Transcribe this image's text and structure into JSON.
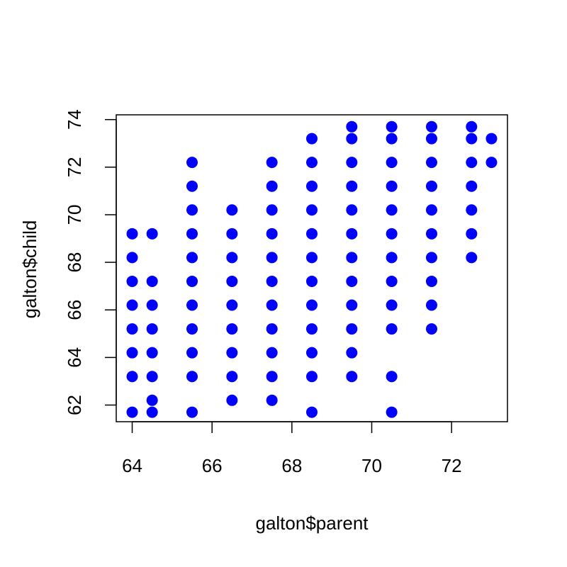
{
  "chart_data": {
    "type": "scatter",
    "xlabel": "galton$parent",
    "ylabel": "galton$child",
    "xlim": [
      63.6,
      73.4
    ],
    "ylim": [
      61.3,
      74.2
    ],
    "x_ticks": [
      64,
      66,
      68,
      70,
      72
    ],
    "y_ticks": [
      62,
      64,
      66,
      68,
      70,
      72,
      74
    ],
    "grid": false,
    "legend": "none",
    "point_color": "#0000ff",
    "points": [
      {
        "x": 64,
        "y": 61.7
      },
      {
        "x": 64,
        "y": 63.2
      },
      {
        "x": 64,
        "y": 64.2
      },
      {
        "x": 64,
        "y": 65.2
      },
      {
        "x": 64,
        "y": 66.2
      },
      {
        "x": 64,
        "y": 67.2
      },
      {
        "x": 64,
        "y": 68.2
      },
      {
        "x": 64,
        "y": 69.2
      },
      {
        "x": 64.5,
        "y": 61.7
      },
      {
        "x": 64.5,
        "y": 62.2
      },
      {
        "x": 64.5,
        "y": 63.2
      },
      {
        "x": 64.5,
        "y": 64.2
      },
      {
        "x": 64.5,
        "y": 65.2
      },
      {
        "x": 64.5,
        "y": 66.2
      },
      {
        "x": 64.5,
        "y": 67.2
      },
      {
        "x": 64.5,
        "y": 69.2
      },
      {
        "x": 65.5,
        "y": 61.7
      },
      {
        "x": 65.5,
        "y": 63.2
      },
      {
        "x": 65.5,
        "y": 64.2
      },
      {
        "x": 65.5,
        "y": 65.2
      },
      {
        "x": 65.5,
        "y": 66.2
      },
      {
        "x": 65.5,
        "y": 67.2
      },
      {
        "x": 65.5,
        "y": 68.2
      },
      {
        "x": 65.5,
        "y": 69.2
      },
      {
        "x": 65.5,
        "y": 70.2
      },
      {
        "x": 65.5,
        "y": 71.2
      },
      {
        "x": 65.5,
        "y": 72.2
      },
      {
        "x": 66.5,
        "y": 62.2
      },
      {
        "x": 66.5,
        "y": 63.2
      },
      {
        "x": 66.5,
        "y": 64.2
      },
      {
        "x": 66.5,
        "y": 65.2
      },
      {
        "x": 66.5,
        "y": 66.2
      },
      {
        "x": 66.5,
        "y": 67.2
      },
      {
        "x": 66.5,
        "y": 68.2
      },
      {
        "x": 66.5,
        "y": 69.2
      },
      {
        "x": 66.5,
        "y": 70.2
      },
      {
        "x": 67.5,
        "y": 62.2
      },
      {
        "x": 67.5,
        "y": 63.2
      },
      {
        "x": 67.5,
        "y": 64.2
      },
      {
        "x": 67.5,
        "y": 65.2
      },
      {
        "x": 67.5,
        "y": 66.2
      },
      {
        "x": 67.5,
        "y": 67.2
      },
      {
        "x": 67.5,
        "y": 68.2
      },
      {
        "x": 67.5,
        "y": 69.2
      },
      {
        "x": 67.5,
        "y": 70.2
      },
      {
        "x": 67.5,
        "y": 71.2
      },
      {
        "x": 67.5,
        "y": 72.2
      },
      {
        "x": 68.5,
        "y": 61.7
      },
      {
        "x": 68.5,
        "y": 63.2
      },
      {
        "x": 68.5,
        "y": 64.2
      },
      {
        "x": 68.5,
        "y": 65.2
      },
      {
        "x": 68.5,
        "y": 66.2
      },
      {
        "x": 68.5,
        "y": 67.2
      },
      {
        "x": 68.5,
        "y": 68.2
      },
      {
        "x": 68.5,
        "y": 69.2
      },
      {
        "x": 68.5,
        "y": 70.2
      },
      {
        "x": 68.5,
        "y": 71.2
      },
      {
        "x": 68.5,
        "y": 72.2
      },
      {
        "x": 68.5,
        "y": 73.2
      },
      {
        "x": 69.5,
        "y": 63.2
      },
      {
        "x": 69.5,
        "y": 64.2
      },
      {
        "x": 69.5,
        "y": 65.2
      },
      {
        "x": 69.5,
        "y": 66.2
      },
      {
        "x": 69.5,
        "y": 67.2
      },
      {
        "x": 69.5,
        "y": 68.2
      },
      {
        "x": 69.5,
        "y": 69.2
      },
      {
        "x": 69.5,
        "y": 70.2
      },
      {
        "x": 69.5,
        "y": 71.2
      },
      {
        "x": 69.5,
        "y": 72.2
      },
      {
        "x": 69.5,
        "y": 73.2
      },
      {
        "x": 69.5,
        "y": 73.7
      },
      {
        "x": 70.5,
        "y": 61.7
      },
      {
        "x": 70.5,
        "y": 63.2
      },
      {
        "x": 70.5,
        "y": 65.2
      },
      {
        "x": 70.5,
        "y": 66.2
      },
      {
        "x": 70.5,
        "y": 67.2
      },
      {
        "x": 70.5,
        "y": 68.2
      },
      {
        "x": 70.5,
        "y": 69.2
      },
      {
        "x": 70.5,
        "y": 70.2
      },
      {
        "x": 70.5,
        "y": 71.2
      },
      {
        "x": 70.5,
        "y": 72.2
      },
      {
        "x": 70.5,
        "y": 73.2
      },
      {
        "x": 70.5,
        "y": 73.7
      },
      {
        "x": 71.5,
        "y": 65.2
      },
      {
        "x": 71.5,
        "y": 66.2
      },
      {
        "x": 71.5,
        "y": 67.2
      },
      {
        "x": 71.5,
        "y": 68.2
      },
      {
        "x": 71.5,
        "y": 69.2
      },
      {
        "x": 71.5,
        "y": 70.2
      },
      {
        "x": 71.5,
        "y": 71.2
      },
      {
        "x": 71.5,
        "y": 72.2
      },
      {
        "x": 71.5,
        "y": 73.2
      },
      {
        "x": 71.5,
        "y": 73.7
      },
      {
        "x": 72.5,
        "y": 68.2
      },
      {
        "x": 72.5,
        "y": 69.2
      },
      {
        "x": 72.5,
        "y": 70.2
      },
      {
        "x": 72.5,
        "y": 71.2
      },
      {
        "x": 72.5,
        "y": 72.2
      },
      {
        "x": 72.5,
        "y": 73.2
      },
      {
        "x": 72.5,
        "y": 73.7
      },
      {
        "x": 73,
        "y": 72.2
      },
      {
        "x": 73,
        "y": 73.2
      }
    ]
  }
}
